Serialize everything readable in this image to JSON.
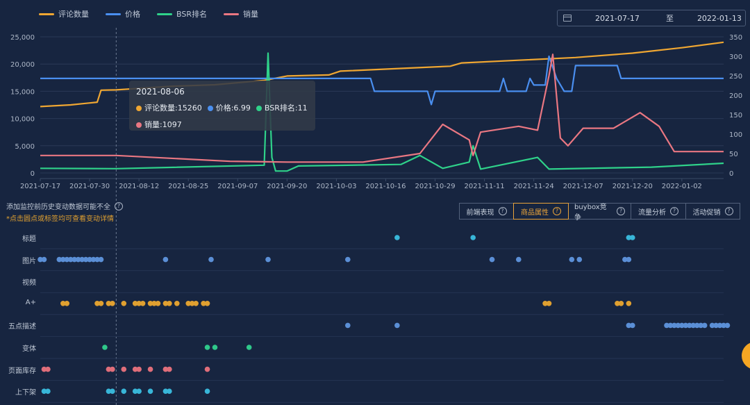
{
  "legend": [
    {
      "label": "评论数量",
      "color": "#f0a732"
    },
    {
      "label": "价格",
      "color": "#4a8ff0"
    },
    {
      "label": "BSR排名",
      "color": "#2fd28a"
    },
    {
      "label": "销量",
      "color": "#ea7782"
    }
  ],
  "date_range": {
    "start": "2021-07-17",
    "separator": "至",
    "end": "2022-01-13"
  },
  "tooltip": {
    "date": "2021-08-06",
    "items": [
      {
        "label": "评论数量:15260",
        "color": "#f0a732"
      },
      {
        "label": "价格:6.99",
        "color": "#4a8ff0"
      },
      {
        "label": "BSR排名:11",
        "color": "#2fd28a"
      },
      {
        "label": "销量:1097",
        "color": "#ea7782"
      }
    ]
  },
  "notes": {
    "line1": "添加监控前历史变动数据可能不全",
    "line2": "*点击圆点或标签均可查看变动详情"
  },
  "tabs": [
    {
      "label": "前端表现",
      "active": false
    },
    {
      "label": "商品属性",
      "active": true
    },
    {
      "label": "buybox竞争",
      "active": false
    },
    {
      "label": "流量分析",
      "active": false
    },
    {
      "label": "活动促销",
      "active": false
    }
  ],
  "chart_data": {
    "type": "line",
    "x_ticks": [
      "2021-07-17",
      "2021-07-30",
      "2021-08-12",
      "2021-08-25",
      "2021-09-07",
      "2021-09-20",
      "2021-10-03",
      "2021-10-16",
      "2021-10-29",
      "2021-11-11",
      "2021-11-24",
      "2021-12-07",
      "2021-12-20",
      "2022-01-02"
    ],
    "x_range": [
      "2021-07-17",
      "2022-01-13"
    ],
    "y_left": {
      "ticks": [
        "0",
        "5,000",
        "10,000",
        "15,000",
        "20,000",
        "25,000"
      ],
      "range": [
        0,
        25000
      ]
    },
    "y_right": {
      "ticks": [
        "0",
        "50",
        "100",
        "150",
        "200",
        "250",
        "300",
        "350"
      ],
      "range": [
        0,
        350
      ]
    },
    "grid": true,
    "legend_position": "top-left",
    "cursor_date": "2021-08-06",
    "series": [
      {
        "name": "评论数量",
        "axis": "left",
        "color": "#f0a732",
        "points": [
          [
            "2021-07-17",
            12200
          ],
          [
            "2021-07-25",
            12500
          ],
          [
            "2021-08-01",
            13000
          ],
          [
            "2021-08-02",
            15200
          ],
          [
            "2021-08-06",
            15260
          ],
          [
            "2021-08-20",
            15900
          ],
          [
            "2021-09-01",
            16200
          ],
          [
            "2021-09-14",
            17000
          ],
          [
            "2021-09-20",
            17800
          ],
          [
            "2021-10-01",
            18000
          ],
          [
            "2021-10-04",
            18700
          ],
          [
            "2021-10-20",
            19200
          ],
          [
            "2021-11-02",
            19600
          ],
          [
            "2021-11-05",
            20200
          ],
          [
            "2021-11-20",
            20700
          ],
          [
            "2021-12-05",
            21200
          ],
          [
            "2021-12-20",
            22000
          ],
          [
            "2022-01-02",
            23000
          ],
          [
            "2022-01-13",
            24000
          ]
        ]
      },
      {
        "name": "价格",
        "axis": "right",
        "color": "#4a8ff0",
        "points": [
          [
            "2021-07-17",
            243
          ],
          [
            "2021-09-20",
            243
          ],
          [
            "2021-10-12",
            243
          ],
          [
            "2021-10-13",
            210
          ],
          [
            "2021-10-27",
            210
          ],
          [
            "2021-10-28",
            176
          ],
          [
            "2021-10-29",
            210
          ],
          [
            "2021-11-15",
            210
          ],
          [
            "2021-11-16",
            243
          ],
          [
            "2021-11-17",
            210
          ],
          [
            "2021-11-22",
            210
          ],
          [
            "2021-11-23",
            243
          ],
          [
            "2021-11-24",
            226
          ],
          [
            "2021-11-27",
            226
          ],
          [
            "2021-11-28",
            300
          ],
          [
            "2021-11-30",
            243
          ],
          [
            "2021-12-02",
            210
          ],
          [
            "2021-12-04",
            210
          ],
          [
            "2021-12-05",
            276
          ],
          [
            "2021-12-16",
            276
          ],
          [
            "2021-12-17",
            243
          ],
          [
            "2022-01-13",
            243
          ]
        ]
      },
      {
        "name": "BSR排名",
        "axis": "right",
        "color": "#2fd28a",
        "points": [
          [
            "2021-07-17",
            12
          ],
          [
            "2021-08-06",
            11
          ],
          [
            "2021-09-14",
            20
          ],
          [
            "2021-09-15",
            308
          ],
          [
            "2021-09-16",
            40
          ],
          [
            "2021-09-17",
            5
          ],
          [
            "2021-09-20",
            5
          ],
          [
            "2021-09-23",
            18
          ],
          [
            "2021-10-20",
            22
          ],
          [
            "2021-10-25",
            45
          ],
          [
            "2021-10-31",
            12
          ],
          [
            "2021-11-07",
            28
          ],
          [
            "2021-11-08",
            70
          ],
          [
            "2021-11-10",
            10
          ],
          [
            "2021-11-25",
            40
          ],
          [
            "2021-11-28",
            10
          ],
          [
            "2021-12-25",
            15
          ],
          [
            "2022-01-13",
            25
          ]
        ]
      },
      {
        "name": "销量",
        "axis": "right",
        "color": "#ea7782",
        "points": [
          [
            "2021-07-17",
            45
          ],
          [
            "2021-08-06",
            45
          ],
          [
            "2021-09-05",
            30
          ],
          [
            "2021-09-20",
            28
          ],
          [
            "2021-10-10",
            28
          ],
          [
            "2021-10-25",
            50
          ],
          [
            "2021-10-31",
            125
          ],
          [
            "2021-11-07",
            85
          ],
          [
            "2021-11-08",
            45
          ],
          [
            "2021-11-10",
            105
          ],
          [
            "2021-11-20",
            120
          ],
          [
            "2021-11-25",
            110
          ],
          [
            "2021-11-28",
            250
          ],
          [
            "2021-11-29",
            305
          ],
          [
            "2021-12-01",
            90
          ],
          [
            "2021-12-03",
            70
          ],
          [
            "2021-12-07",
            115
          ],
          [
            "2021-12-15",
            115
          ],
          [
            "2021-12-22",
            155
          ],
          [
            "2021-12-27",
            120
          ],
          [
            "2021-12-31",
            55
          ],
          [
            "2022-01-13",
            55
          ]
        ]
      }
    ]
  },
  "attribute_rows": [
    {
      "label": "标题",
      "color": "#38b6d8",
      "dates": [
        "2021-10-19",
        "2021-11-08",
        "2021-12-19",
        "2021-12-20"
      ]
    },
    {
      "label": "图片",
      "color": "#5b8fd6",
      "dates": [
        "2021-07-17",
        "2021-07-18",
        "2021-07-22",
        "2021-07-23",
        "2021-07-24",
        "2021-07-25",
        "2021-07-26",
        "2021-07-27",
        "2021-07-28",
        "2021-07-29",
        "2021-07-30",
        "2021-07-31",
        "2021-08-01",
        "2021-08-02",
        "2021-08-19",
        "2021-08-31",
        "2021-09-15",
        "2021-10-06",
        "2021-11-13",
        "2021-11-20",
        "2021-12-04",
        "2021-12-06",
        "2021-12-18",
        "2021-12-19"
      ]
    },
    {
      "label": "视频",
      "color": "#38b6d8",
      "dates": []
    },
    {
      "label": "A+",
      "color": "#e0a030",
      "dates": [
        "2021-07-23",
        "2021-07-24",
        "2021-08-01",
        "2021-08-02",
        "2021-08-04",
        "2021-08-05",
        "2021-08-08",
        "2021-08-11",
        "2021-08-12",
        "2021-08-13",
        "2021-08-15",
        "2021-08-16",
        "2021-08-17",
        "2021-08-19",
        "2021-08-20",
        "2021-08-22",
        "2021-08-25",
        "2021-08-26",
        "2021-08-27",
        "2021-08-29",
        "2021-08-30",
        "2021-11-27",
        "2021-11-28",
        "2021-12-16",
        "2021-12-17",
        "2021-12-19"
      ]
    },
    {
      "label": "五点描述",
      "color": "#5b8fd6",
      "dates": [
        "2021-10-06",
        "2021-10-19",
        "2021-12-19",
        "2021-12-20",
        "2021-12-29",
        "2021-12-30",
        "2021-12-31",
        "2022-01-01",
        "2022-01-02",
        "2022-01-03",
        "2022-01-04",
        "2022-01-05",
        "2022-01-06",
        "2022-01-07",
        "2022-01-08",
        "2022-01-10",
        "2022-01-11",
        "2022-01-12",
        "2022-01-13",
        "2022-01-14"
      ]
    },
    {
      "label": "变体",
      "color": "#2fc88a",
      "dates": [
        "2021-08-03",
        "2021-08-30",
        "2021-09-01",
        "2021-09-10"
      ]
    },
    {
      "label": "页面库存",
      "color": "#e06e7a",
      "dates": [
        "2021-07-18",
        "2021-07-19",
        "2021-08-04",
        "2021-08-05",
        "2021-08-08",
        "2021-08-11",
        "2021-08-12",
        "2021-08-15",
        "2021-08-19",
        "2021-08-20",
        "2021-08-30"
      ]
    },
    {
      "label": "上下架",
      "color": "#38b6d8",
      "dates": [
        "2021-07-18",
        "2021-07-19",
        "2021-08-04",
        "2021-08-05",
        "2021-08-08",
        "2021-08-11",
        "2021-08-12",
        "2021-08-15",
        "2021-08-19",
        "2021-08-20",
        "2021-08-30"
      ]
    }
  ]
}
